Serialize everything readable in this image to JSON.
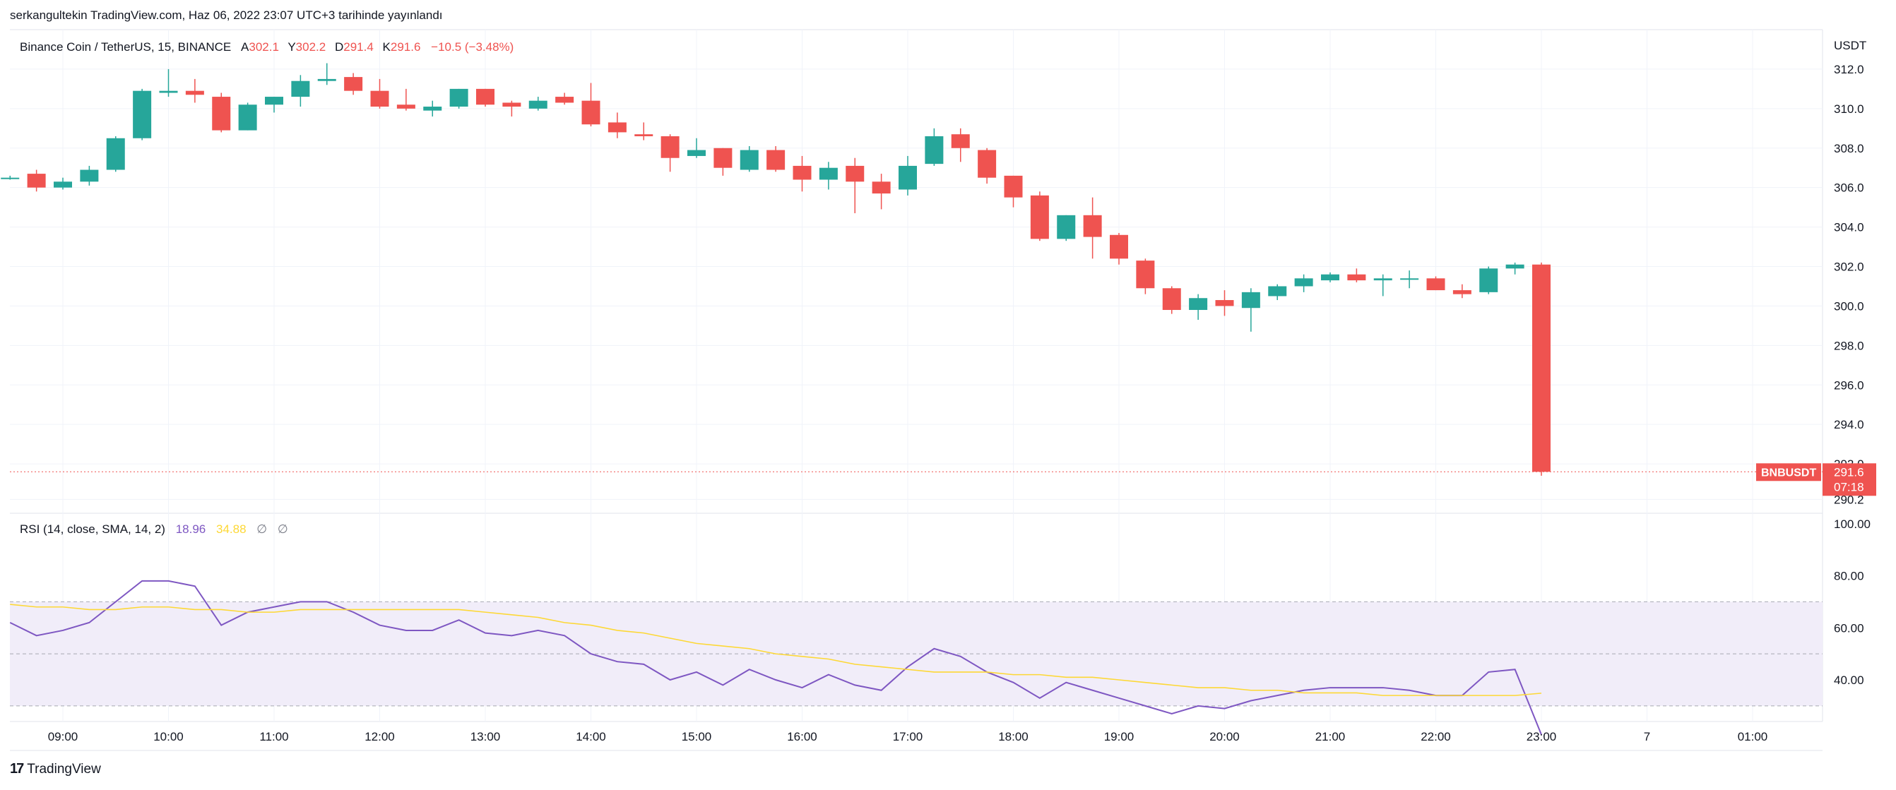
{
  "header": {
    "publish_line": "serkangultekin TradingView.com, Haz 06, 2022 23:07 UTC+3 tarihinde yayınlandı"
  },
  "legend": {
    "symbol": "Binance Coin / TetherUS, 15, BINANCE",
    "open_label": "A",
    "open_value": "302.1",
    "high_label": "Y",
    "high_value": "302.2",
    "low_label": "D",
    "low_value": "291.4",
    "close_label": "K",
    "close_value": "291.6",
    "change": "−10.5 (−3.48%)"
  },
  "price_scale": {
    "currency": "USDT"
  },
  "price_tag": {
    "symbol": "BNBUSDT",
    "price": "291.6",
    "countdown": "07:18"
  },
  "rsi_legend": {
    "label": "RSI (14, close, SMA, 14, 2)",
    "rsi_value": "18.96",
    "sma_value": "34.88",
    "extra1": "∅",
    "extra2": "∅"
  },
  "branding": {
    "logo_mark": "17",
    "logo_text": "TradingView"
  },
  "colors": {
    "up": "#26a69a",
    "down": "#ef5350",
    "rsi_line": "#7e57c2",
    "rsi_sma": "#fdd835",
    "rsi_band": "#f1edf9"
  },
  "chart_data": [
    {
      "type": "candlestick",
      "title": "Binance Coin / TetherUS, 15, BINANCE",
      "x_tick_labels": [
        "09:00",
        "10:00",
        "11:00",
        "12:00",
        "13:00",
        "14:00",
        "15:00",
        "16:00",
        "17:00",
        "18:00",
        "19:00",
        "20:00",
        "21:00",
        "22:00",
        "23:00",
        "7",
        "01:00"
      ],
      "y_tick_labels": [
        "290.2",
        "292.0",
        "294.0",
        "296.0",
        "298.0",
        "300.0",
        "302.0",
        "304.0",
        "306.0",
        "308.0",
        "310.0",
        "312.0"
      ],
      "ylim": [
        289.5,
        314.0
      ],
      "candles": [
        {
          "time": "08:30",
          "o": 306.5,
          "h": 306.6,
          "l": 306.4,
          "c": 306.5
        },
        {
          "time": "08:45",
          "o": 306.7,
          "h": 306.9,
          "l": 305.8,
          "c": 306.0
        },
        {
          "time": "09:00",
          "o": 306.0,
          "h": 306.5,
          "l": 305.9,
          "c": 306.3
        },
        {
          "time": "09:15",
          "o": 306.3,
          "h": 307.1,
          "l": 306.1,
          "c": 306.9
        },
        {
          "time": "09:30",
          "o": 306.9,
          "h": 308.6,
          "l": 306.8,
          "c": 308.5
        },
        {
          "time": "09:45",
          "o": 308.5,
          "h": 311.0,
          "l": 308.4,
          "c": 310.9
        },
        {
          "time": "10:00",
          "o": 310.8,
          "h": 312.0,
          "l": 310.6,
          "c": 310.9
        },
        {
          "time": "10:15",
          "o": 310.9,
          "h": 311.5,
          "l": 310.3,
          "c": 310.7
        },
        {
          "time": "10:30",
          "o": 310.6,
          "h": 310.8,
          "l": 308.8,
          "c": 308.9
        },
        {
          "time": "10:45",
          "o": 308.9,
          "h": 310.3,
          "l": 308.9,
          "c": 310.2
        },
        {
          "time": "11:00",
          "o": 310.2,
          "h": 310.6,
          "l": 309.8,
          "c": 310.6
        },
        {
          "time": "11:15",
          "o": 310.6,
          "h": 311.7,
          "l": 310.1,
          "c": 311.4
        },
        {
          "time": "11:30",
          "o": 311.4,
          "h": 312.3,
          "l": 311.2,
          "c": 311.5
        },
        {
          "time": "11:45",
          "o": 311.6,
          "h": 311.8,
          "l": 310.7,
          "c": 310.9
        },
        {
          "time": "12:00",
          "o": 310.9,
          "h": 311.5,
          "l": 310.0,
          "c": 310.1
        },
        {
          "time": "12:15",
          "o": 310.2,
          "h": 311.0,
          "l": 309.9,
          "c": 310.0
        },
        {
          "time": "12:30",
          "o": 309.9,
          "h": 310.4,
          "l": 309.6,
          "c": 310.1
        },
        {
          "time": "12:45",
          "o": 310.1,
          "h": 311.0,
          "l": 310.0,
          "c": 311.0
        },
        {
          "time": "13:00",
          "o": 311.0,
          "h": 311.0,
          "l": 310.1,
          "c": 310.2
        },
        {
          "time": "13:15",
          "o": 310.3,
          "h": 310.4,
          "l": 309.6,
          "c": 310.1
        },
        {
          "time": "13:30",
          "o": 310.0,
          "h": 310.6,
          "l": 309.9,
          "c": 310.4
        },
        {
          "time": "13:45",
          "o": 310.6,
          "h": 310.8,
          "l": 310.2,
          "c": 310.3
        },
        {
          "time": "14:00",
          "o": 310.4,
          "h": 311.3,
          "l": 309.1,
          "c": 309.2
        },
        {
          "time": "14:15",
          "o": 309.3,
          "h": 309.8,
          "l": 308.5,
          "c": 308.8
        },
        {
          "time": "14:30",
          "o": 308.7,
          "h": 309.3,
          "l": 308.4,
          "c": 308.6
        },
        {
          "time": "14:45",
          "o": 308.6,
          "h": 308.7,
          "l": 306.8,
          "c": 307.5
        },
        {
          "time": "15:00",
          "o": 307.6,
          "h": 308.5,
          "l": 307.5,
          "c": 307.9
        },
        {
          "time": "15:15",
          "o": 308.0,
          "h": 308.0,
          "l": 306.6,
          "c": 307.0
        },
        {
          "time": "15:30",
          "o": 306.9,
          "h": 308.1,
          "l": 306.8,
          "c": 307.9
        },
        {
          "time": "15:45",
          "o": 307.9,
          "h": 308.1,
          "l": 306.8,
          "c": 306.9
        },
        {
          "time": "16:00",
          "o": 307.1,
          "h": 307.6,
          "l": 305.8,
          "c": 306.4
        },
        {
          "time": "16:15",
          "o": 306.4,
          "h": 307.3,
          "l": 305.9,
          "c": 307.0
        },
        {
          "time": "16:30",
          "o": 307.1,
          "h": 307.5,
          "l": 304.7,
          "c": 306.3
        },
        {
          "time": "16:45",
          "o": 306.3,
          "h": 306.7,
          "l": 304.9,
          "c": 305.7
        },
        {
          "time": "17:00",
          "o": 305.9,
          "h": 307.6,
          "l": 305.6,
          "c": 307.1
        },
        {
          "time": "17:15",
          "o": 307.2,
          "h": 309.0,
          "l": 307.1,
          "c": 308.6
        },
        {
          "time": "17:30",
          "o": 308.7,
          "h": 309.0,
          "l": 307.3,
          "c": 308.0
        },
        {
          "time": "17:45",
          "o": 307.9,
          "h": 308.0,
          "l": 306.2,
          "c": 306.5
        },
        {
          "time": "18:00",
          "o": 306.6,
          "h": 306.6,
          "l": 305.0,
          "c": 305.5
        },
        {
          "time": "18:15",
          "o": 305.6,
          "h": 305.8,
          "l": 303.3,
          "c": 303.4
        },
        {
          "time": "18:30",
          "o": 303.4,
          "h": 304.6,
          "l": 303.3,
          "c": 304.6
        },
        {
          "time": "18:45",
          "o": 304.6,
          "h": 305.5,
          "l": 302.4,
          "c": 303.5
        },
        {
          "time": "19:00",
          "o": 303.6,
          "h": 303.7,
          "l": 302.1,
          "c": 302.4
        },
        {
          "time": "19:15",
          "o": 302.3,
          "h": 302.4,
          "l": 300.6,
          "c": 300.9
        },
        {
          "time": "19:30",
          "o": 300.9,
          "h": 301.0,
          "l": 299.6,
          "c": 299.8
        },
        {
          "time": "19:45",
          "o": 299.8,
          "h": 300.6,
          "l": 299.3,
          "c": 300.4
        },
        {
          "time": "20:00",
          "o": 300.3,
          "h": 300.8,
          "l": 299.5,
          "c": 300.0
        },
        {
          "time": "20:15",
          "o": 299.9,
          "h": 300.9,
          "l": 298.7,
          "c": 300.7
        },
        {
          "time": "20:30",
          "o": 300.5,
          "h": 301.1,
          "l": 300.3,
          "c": 301.0
        },
        {
          "time": "20:45",
          "o": 301.0,
          "h": 301.6,
          "l": 300.7,
          "c": 301.4
        },
        {
          "time": "21:00",
          "o": 301.3,
          "h": 301.7,
          "l": 301.2,
          "c": 301.6
        },
        {
          "time": "21:15",
          "o": 301.6,
          "h": 301.9,
          "l": 301.2,
          "c": 301.3
        },
        {
          "time": "21:30",
          "o": 301.3,
          "h": 301.6,
          "l": 300.5,
          "c": 301.4
        },
        {
          "time": "21:45",
          "o": 301.4,
          "h": 301.8,
          "l": 300.9,
          "c": 301.4
        },
        {
          "time": "22:00",
          "o": 301.4,
          "h": 301.5,
          "l": 300.8,
          "c": 300.8
        },
        {
          "time": "22:15",
          "o": 300.8,
          "h": 301.1,
          "l": 300.4,
          "c": 300.6
        },
        {
          "time": "22:30",
          "o": 300.7,
          "h": 302.0,
          "l": 300.6,
          "c": 301.9
        },
        {
          "time": "22:45",
          "o": 301.9,
          "h": 302.2,
          "l": 301.6,
          "c": 302.1
        },
        {
          "time": "23:00",
          "o": 302.1,
          "h": 302.2,
          "l": 291.4,
          "c": 291.6
        }
      ],
      "last_price": 291.6
    },
    {
      "type": "line",
      "title": "RSI (14, close, SMA, 14, 2)",
      "y_tick_labels": [
        "40.00",
        "60.00",
        "80.00",
        "100.00"
      ],
      "ylim": [
        24,
        104
      ],
      "band": [
        30,
        70
      ],
      "midline": 50,
      "series": [
        {
          "name": "RSI",
          "values": [
            62,
            57,
            59,
            62,
            70,
            78,
            78,
            76,
            61,
            66,
            68,
            70,
            70,
            66,
            61,
            59,
            59,
            63,
            58,
            57,
            59,
            57,
            50,
            47,
            46,
            40,
            43,
            38,
            44,
            40,
            37,
            42,
            38,
            36,
            45,
            52,
            49,
            43,
            39,
            33,
            39,
            36,
            33,
            30,
            27,
            30,
            29,
            32,
            34,
            36,
            37,
            37,
            37,
            36,
            34,
            34,
            43,
            44,
            18.96
          ]
        },
        {
          "name": "RSI-based MA",
          "values": [
            69,
            68,
            68,
            67,
            67,
            68,
            68,
            67,
            67,
            66,
            66,
            67,
            67,
            67,
            67,
            67,
            67,
            67,
            66,
            65,
            64,
            62,
            61,
            59,
            58,
            56,
            54,
            53,
            52,
            50,
            49,
            48,
            46,
            45,
            44,
            43,
            43,
            43,
            42,
            42,
            41,
            41,
            40,
            39,
            38,
            37,
            37,
            36,
            36,
            35,
            35,
            35,
            34,
            34,
            34,
            34,
            34,
            34,
            34.88
          ]
        }
      ]
    }
  ]
}
